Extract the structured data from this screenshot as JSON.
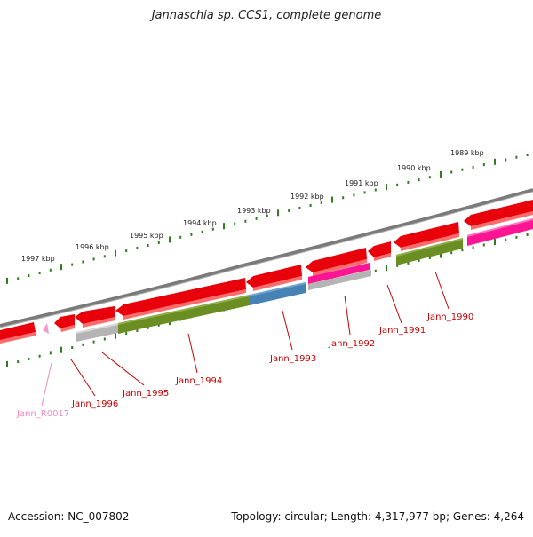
{
  "title": "Jannaschia sp. CCS1, complete genome",
  "footer": {
    "accession": "Accession: NC_007802",
    "summary": "Topology: circular; Length: 4,317,977 bp; Genes: 4,264"
  },
  "colors": {
    "backbone": "#7a7a7a",
    "tick": "#2e7d1e",
    "cds_forward": "#e8000b",
    "cds_olive": "#6b8e23",
    "cds_blue": "#4682b4",
    "cds_gray": "#b4b4b4",
    "cds_pink": "#ff1493",
    "rna_pink": "#f59ac8",
    "label_red": "#cc0000",
    "label_pink": "#f08cc0"
  },
  "kbp_labels": [
    "1997 kbp",
    "1996 kbp",
    "1995 kbp",
    "1994 kbp",
    "1993 kbp",
    "1992 kbp",
    "1991 kbp",
    "1990 kbp",
    "1989 kbp"
  ],
  "gene_labels": [
    "Jann_R0017",
    "Jann_1996",
    "Jann_1995",
    "Jann_1994",
    "Jann_1993",
    "Jann_1992",
    "Jann_1991",
    "Jann_1990"
  ]
}
